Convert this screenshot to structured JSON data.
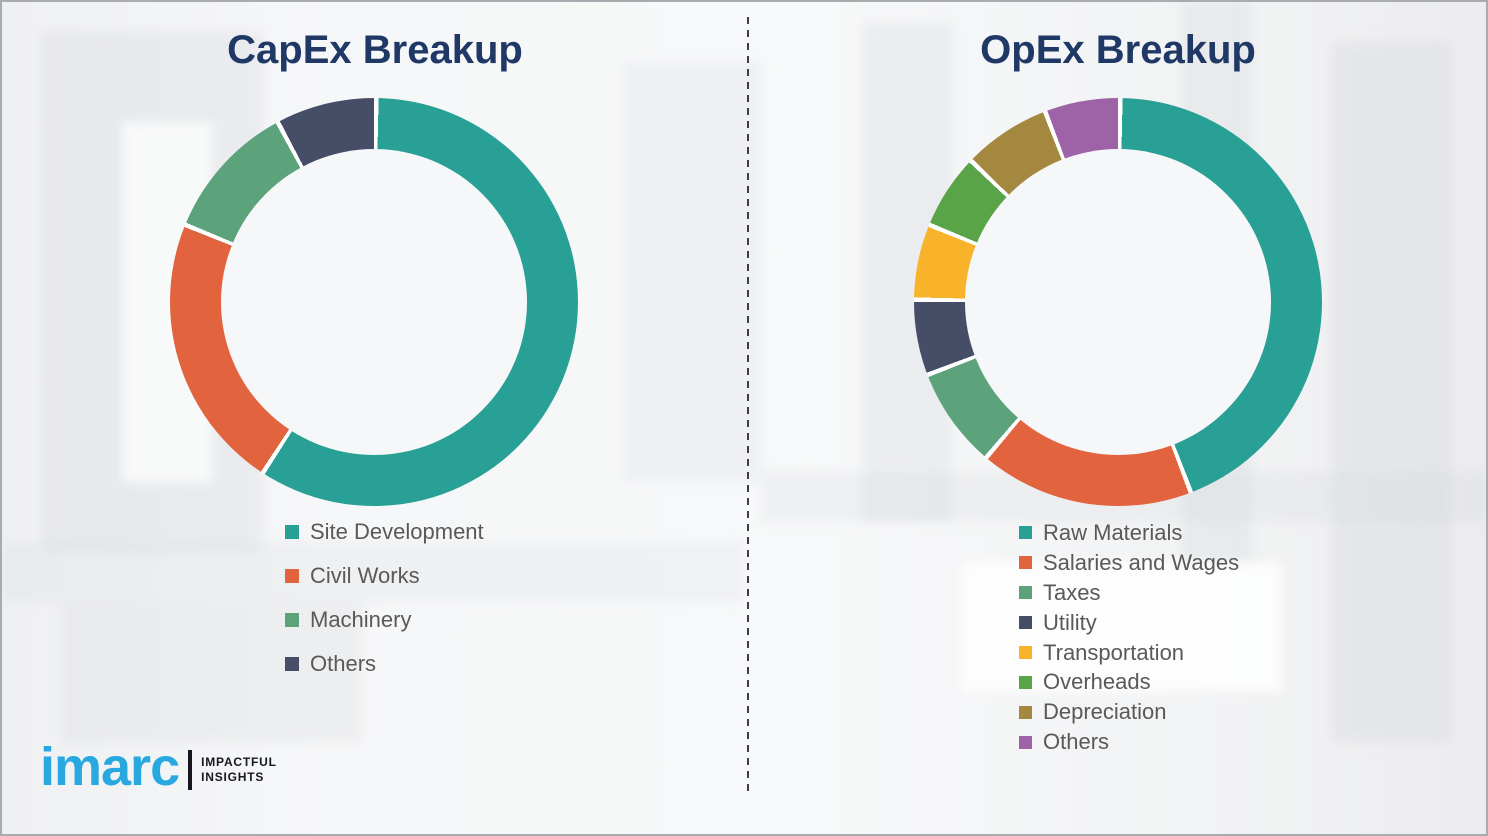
{
  "page": {
    "background_color": "#F4F5F6",
    "title_color": "#1F3866",
    "legend_text_color": "#595959",
    "segment_gap_color": "#FFFFFF",
    "divider_style": "vertical-dashed",
    "divider_color": "#3F3F42"
  },
  "logo": {
    "brand": "imarc",
    "brand_color": "#29A8E0",
    "tagline_line1": "IMPACTFUL",
    "tagline_line2": "INSIGHTS",
    "tagline_color": "#17171F"
  },
  "chart_data": [
    {
      "type": "pie",
      "subtype": "donut",
      "title": "CapEx Breakup",
      "categories": [
        "Site Development",
        "Civil Works",
        "Machinery",
        "Others"
      ],
      "values": [
        59,
        22,
        11,
        8
      ],
      "values_note": "percent, estimated from arc angles; no data labels shown",
      "colors": [
        "#29A095",
        "#E2643F",
        "#5CA37C",
        "#464D67"
      ],
      "start_angle_deg": 0,
      "direction": "clockwise",
      "donut_hole_ratio": 0.75,
      "legend_position": "below-left",
      "data_labels": false
    },
    {
      "type": "pie",
      "subtype": "donut",
      "title": "OpEx Breakup",
      "categories": [
        "Raw Materials",
        "Salaries and Wages",
        "Taxes",
        "Utility",
        "Transportation",
        "Overheads",
        "Depreciation",
        "Others"
      ],
      "values": [
        44,
        17,
        8,
        6,
        6,
        6,
        7,
        6
      ],
      "values_note": "percent, estimated from arc angles; no data labels shown",
      "colors": [
        "#29A095",
        "#E2643F",
        "#5CA37C",
        "#464D67",
        "#F8B32A",
        "#58A447",
        "#A5883F",
        "#9E63A6"
      ],
      "start_angle_deg": 0,
      "direction": "clockwise",
      "donut_hole_ratio": 0.75,
      "legend_position": "below-left",
      "data_labels": false
    }
  ]
}
